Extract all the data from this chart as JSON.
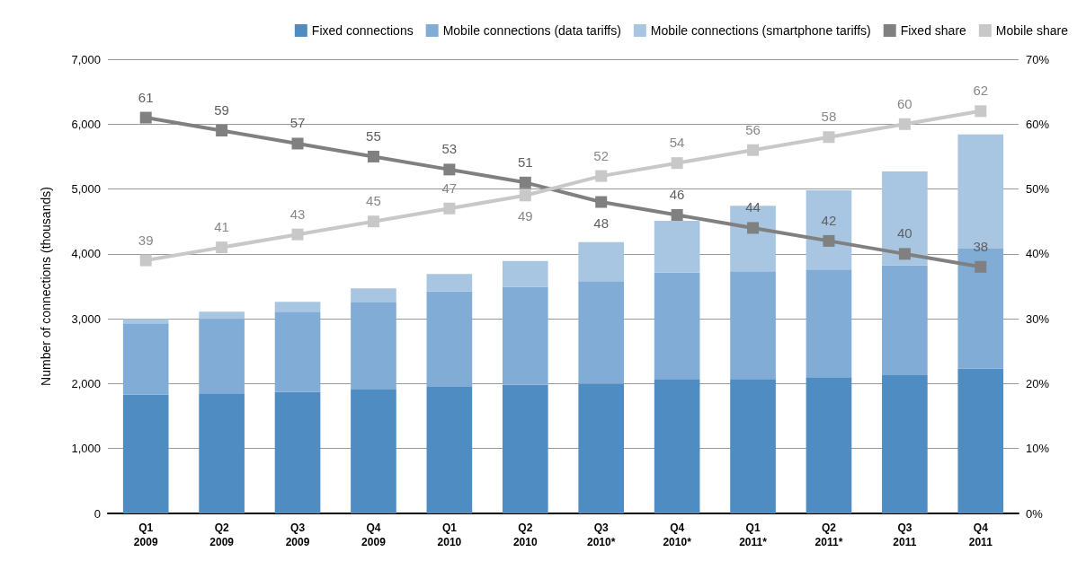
{
  "chart_data": {
    "type": "bar",
    "stacked": true,
    "ylabel": "Number of connections (thousands)",
    "categories": [
      "Q1\n2009",
      "Q2\n2009",
      "Q3\n2009",
      "Q4\n2009",
      "Q1\n2010",
      "Q2\n2010",
      "Q3\n2010*",
      "Q4\n2010*",
      "Q1\n2011*",
      "Q2\n2011*",
      "Q3\n2011",
      "Q4\n2011"
    ],
    "series": [
      {
        "name": "Fixed connections",
        "color": "#4e8cc2",
        "values": [
          1830,
          1850,
          1870,
          1910,
          1950,
          1980,
          2000,
          2070,
          2070,
          2100,
          2130,
          2230
        ]
      },
      {
        "name": "Mobile connections (data tariffs)",
        "color": "#80acd6",
        "values": [
          1100,
          1150,
          1240,
          1340,
          1470,
          1510,
          1580,
          1640,
          1660,
          1660,
          1690,
          1850
        ]
      },
      {
        "name": "Mobile connections (smartphone tariffs)",
        "color": "#a8c6e2",
        "values": [
          70,
          110,
          150,
          220,
          270,
          400,
          600,
          800,
          1010,
          1220,
          1450,
          1760
        ]
      },
      {
        "name": "Fixed share",
        "type": "line",
        "axis": "y2",
        "color": "#808080",
        "data_labels": true,
        "values": [
          61,
          59,
          57,
          55,
          53,
          51,
          48,
          46,
          44,
          42,
          40,
          38
        ]
      },
      {
        "name": "Mobile share",
        "type": "line",
        "axis": "y2",
        "color": "#c8c8c8",
        "data_labels": true,
        "values": [
          39,
          41,
          43,
          45,
          47,
          49,
          52,
          54,
          56,
          58,
          60,
          62
        ]
      }
    ],
    "ylim": [
      0,
      7000
    ],
    "yticks": [
      0,
      {
        "value": 1000,
        "label": "1,000"
      },
      {
        "value": 2000,
        "label": "2,000"
      },
      {
        "value": 3000,
        "label": "3,000"
      },
      {
        "value": 4000,
        "label": "4,000"
      },
      {
        "value": 5000,
        "label": "5,000"
      },
      {
        "value": 6000,
        "label": "6,000"
      },
      {
        "value": 7000,
        "label": "7,000"
      }
    ],
    "y2lim": [
      0,
      70
    ],
    "y2ticks": [
      {
        "value": 0,
        "label": "0%"
      },
      {
        "value": 10,
        "label": "10%"
      },
      {
        "value": 20,
        "label": "20%"
      },
      {
        "value": 30,
        "label": "30%"
      },
      {
        "value": 40,
        "label": "40%"
      },
      {
        "value": 50,
        "label": "50%"
      },
      {
        "value": 60,
        "label": "60%"
      },
      {
        "value": 70,
        "label": "70%"
      }
    ],
    "grid": "y",
    "legend": "top right",
    "marker": "square",
    "line_style": "solid"
  }
}
